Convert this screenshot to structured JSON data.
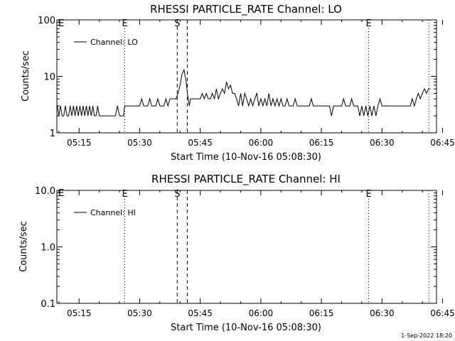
{
  "footer_timestamp": "1-Sep-2022 18:20",
  "chart_data": [
    {
      "type": "line",
      "title": "RHESSI PARTICLE_RATE Channel: LO",
      "xlabel": "Start Time (10-Nov-16 05:08:30)",
      "ylabel": "Counts/sec",
      "yscale": "log",
      "ylim": [
        1,
        100
      ],
      "xlim_minutes": [
        9.5,
        103.5
      ],
      "x_ticks": [
        {
          "min": 15,
          "label": "05:15"
        },
        {
          "min": 30,
          "label": "05:30"
        },
        {
          "min": 45,
          "label": "05:45"
        },
        {
          "min": 60,
          "label": "06:00"
        },
        {
          "min": 75,
          "label": "06:15"
        },
        {
          "min": 90,
          "label": "06:30"
        },
        {
          "min": 105,
          "label": "06:45"
        }
      ],
      "y_ticks": [
        {
          "value": 1,
          "label": "1"
        },
        {
          "value": 10,
          "label": "10"
        },
        {
          "value": 100,
          "label": "100"
        }
      ],
      "legend": {
        "label": "Channel: LO",
        "position": "top-left"
      },
      "markers": [
        {
          "min": 26.3,
          "style": "dotted",
          "label": "E"
        },
        {
          "min": 39.3,
          "style": "dashed",
          "label": "S"
        },
        {
          "min": 41.8,
          "style": "dashed",
          "label": ""
        },
        {
          "min": 86.7,
          "style": "dotted",
          "label": "E"
        },
        {
          "min": 101.6,
          "style": "dotted",
          "label": ""
        }
      ],
      "corner_label": "E",
      "series": [
        {
          "values": [
            [
              9.6,
              3
            ],
            [
              10.0,
              2
            ],
            [
              10.4,
              3
            ],
            [
              10.8,
              2
            ],
            [
              11.2,
              2
            ],
            [
              11.6,
              3
            ],
            [
              12.0,
              2
            ],
            [
              12.4,
              2
            ],
            [
              12.8,
              3
            ],
            [
              13.2,
              2
            ],
            [
              13.6,
              3
            ],
            [
              14.0,
              2
            ],
            [
              14.4,
              3
            ],
            [
              14.8,
              2
            ],
            [
              15.2,
              3
            ],
            [
              15.6,
              2
            ],
            [
              16.0,
              3
            ],
            [
              16.4,
              2
            ],
            [
              16.8,
              3
            ],
            [
              17.2,
              2
            ],
            [
              17.6,
              3
            ],
            [
              18.0,
              2
            ],
            [
              18.4,
              3
            ],
            [
              18.8,
              2
            ],
            [
              19.2,
              2
            ],
            [
              19.6,
              3
            ],
            [
              20.0,
              2
            ],
            [
              20.4,
              2
            ],
            [
              21.0,
              2
            ],
            [
              22.0,
              2
            ],
            [
              23.0,
              2
            ],
            [
              24.0,
              2
            ],
            [
              24.5,
              3
            ],
            [
              25.0,
              2
            ],
            [
              25.5,
              2
            ],
            [
              26.0,
              2
            ],
            [
              26.3,
              3
            ],
            [
              27.0,
              3
            ],
            [
              28.0,
              3
            ],
            [
              29.0,
              3
            ],
            [
              30.0,
              3
            ],
            [
              30.5,
              4
            ],
            [
              31.0,
              3
            ],
            [
              32.0,
              3
            ],
            [
              32.5,
              4
            ],
            [
              33.0,
              3
            ],
            [
              34.0,
              3
            ],
            [
              34.5,
              4
            ],
            [
              35.0,
              3
            ],
            [
              36.0,
              3
            ],
            [
              36.5,
              4
            ],
            [
              37.0,
              3
            ],
            [
              37.5,
              4
            ],
            [
              38.0,
              4
            ],
            [
              38.5,
              4
            ],
            [
              39.0,
              4
            ],
            [
              39.5,
              5
            ],
            [
              40.0,
              7
            ],
            [
              40.5,
              11
            ],
            [
              41.0,
              13
            ],
            [
              41.5,
              8
            ],
            [
              42.0,
              4
            ],
            [
              42.3,
              3
            ],
            [
              42.6,
              4
            ],
            [
              43.0,
              4
            ],
            [
              44.0,
              4
            ],
            [
              45.0,
              4
            ],
            [
              45.5,
              5
            ],
            [
              46.0,
              4
            ],
            [
              46.5,
              5
            ],
            [
              47.0,
              4
            ],
            [
              47.5,
              4
            ],
            [
              48.0,
              5
            ],
            [
              48.5,
              4
            ],
            [
              49.0,
              6
            ],
            [
              49.5,
              4
            ],
            [
              50.0,
              5
            ],
            [
              50.5,
              6
            ],
            [
              51.0,
              5
            ],
            [
              51.5,
              8
            ],
            [
              52.0,
              6
            ],
            [
              52.5,
              7
            ],
            [
              53.0,
              5
            ],
            [
              53.5,
              5
            ],
            [
              54.0,
              4
            ],
            [
              54.5,
              3
            ],
            [
              55.0,
              5
            ],
            [
              55.5,
              3
            ],
            [
              56.0,
              5
            ],
            [
              56.5,
              4
            ],
            [
              57.0,
              3
            ],
            [
              57.5,
              4
            ],
            [
              58.0,
              3
            ],
            [
              58.5,
              4
            ],
            [
              59.0,
              5
            ],
            [
              59.5,
              3
            ],
            [
              60.0,
              4
            ],
            [
              60.5,
              3
            ],
            [
              61.0,
              4
            ],
            [
              61.5,
              3
            ],
            [
              62.0,
              5
            ],
            [
              62.5,
              3
            ],
            [
              63.0,
              4
            ],
            [
              63.5,
              3
            ],
            [
              64.0,
              4
            ],
            [
              64.5,
              3
            ],
            [
              65.0,
              4
            ],
            [
              65.5,
              3
            ],
            [
              66.0,
              3
            ],
            [
              66.5,
              4
            ],
            [
              67.0,
              3
            ],
            [
              68.0,
              3
            ],
            [
              68.5,
              4
            ],
            [
              69.0,
              3
            ],
            [
              70.0,
              3
            ],
            [
              71.0,
              3
            ],
            [
              72.0,
              3
            ],
            [
              72.5,
              4
            ],
            [
              73.0,
              3
            ],
            [
              74.0,
              3
            ],
            [
              75.0,
              3
            ],
            [
              76.0,
              3
            ],
            [
              77.0,
              3
            ],
            [
              77.5,
              2
            ],
            [
              78.0,
              3
            ],
            [
              79.0,
              3
            ],
            [
              80.0,
              3
            ],
            [
              80.5,
              4
            ],
            [
              81.0,
              3
            ],
            [
              82.0,
              3
            ],
            [
              82.5,
              4
            ],
            [
              83.0,
              3
            ],
            [
              84.0,
              3
            ],
            [
              84.5,
              2
            ],
            [
              85.0,
              3
            ],
            [
              85.5,
              2
            ],
            [
              86.0,
              3
            ],
            [
              86.5,
              2
            ],
            [
              87.0,
              3
            ],
            [
              87.5,
              2
            ],
            [
              88.0,
              3
            ],
            [
              88.5,
              2
            ],
            [
              89.0,
              3
            ],
            [
              89.5,
              4
            ],
            [
              90.0,
              3
            ],
            [
              91.0,
              3
            ],
            [
              92.0,
              3
            ],
            [
              93.0,
              3
            ],
            [
              94.0,
              3
            ],
            [
              95.0,
              3
            ],
            [
              96.0,
              3
            ],
            [
              97.0,
              3
            ],
            [
              97.5,
              4
            ],
            [
              98.0,
              3
            ],
            [
              98.5,
              4
            ],
            [
              99.0,
              5
            ],
            [
              99.5,
              4
            ],
            [
              100.0,
              5
            ],
            [
              100.5,
              6
            ],
            [
              101.0,
              5
            ],
            [
              101.5,
              6
            ],
            [
              101.9,
              6
            ]
          ]
        }
      ]
    },
    {
      "type": "line",
      "title": "RHESSI PARTICLE_RATE Channel: HI",
      "xlabel": "Start Time (10-Nov-16 05:08:30)",
      "ylabel": "Counts/sec",
      "yscale": "log",
      "ylim": [
        0.1,
        10
      ],
      "xlim_minutes": [
        9.5,
        103.5
      ],
      "x_ticks": [
        {
          "min": 15,
          "label": "05:15"
        },
        {
          "min": 30,
          "label": "05:30"
        },
        {
          "min": 45,
          "label": "05:45"
        },
        {
          "min": 60,
          "label": "06:00"
        },
        {
          "min": 75,
          "label": "06:15"
        },
        {
          "min": 90,
          "label": "06:30"
        },
        {
          "min": 105,
          "label": "06:45"
        }
      ],
      "y_ticks": [
        {
          "value": 0.1,
          "label": "0.1"
        },
        {
          "value": 1,
          "label": "1.0"
        },
        {
          "value": 10,
          "label": "10.0"
        }
      ],
      "legend": {
        "label": "Channel: HI",
        "position": "top-left"
      },
      "markers": [
        {
          "min": 26.3,
          "style": "dotted",
          "label": "E"
        },
        {
          "min": 39.3,
          "style": "dashed",
          "label": "S"
        },
        {
          "min": 41.8,
          "style": "dashed",
          "label": ""
        },
        {
          "min": 86.7,
          "style": "dotted",
          "label": "E"
        },
        {
          "min": 101.6,
          "style": "dotted",
          "label": ""
        }
      ],
      "corner_label": "E",
      "series": [
        {
          "values": []
        }
      ]
    }
  ]
}
